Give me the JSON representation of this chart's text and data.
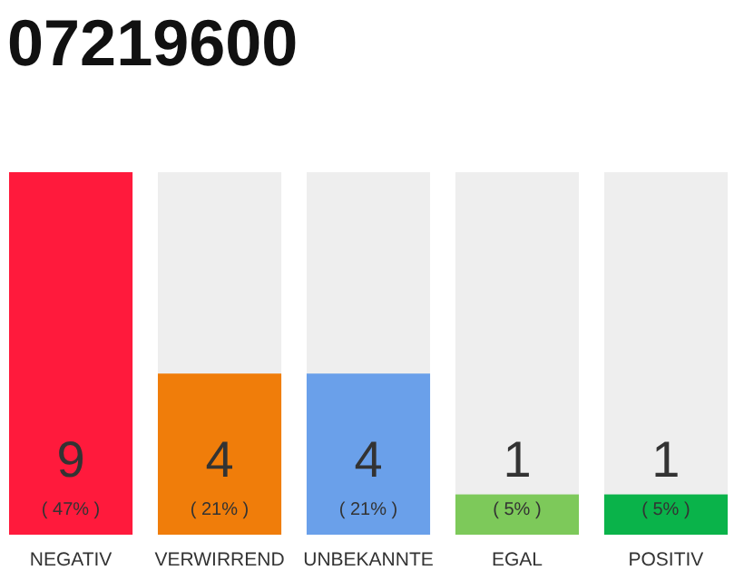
{
  "chart_data": {
    "type": "bar",
    "title": "07219600",
    "categories": [
      "NEGATIV",
      "VERWIRREND",
      "UNBEKANNTE",
      "EGAL",
      "POSITIV"
    ],
    "values": [
      9,
      4,
      4,
      1,
      1
    ],
    "colors": [
      "#ff1a3c",
      "#f07d0a",
      "#6aa0ea",
      "#7dc95a",
      "#0ab34a"
    ],
    "value_labels": [
      "9\n( 47% )",
      "4\n( 21% )",
      "4\n( 21% )",
      "1\n( 5% )",
      "1\n( 5% )"
    ]
  }
}
